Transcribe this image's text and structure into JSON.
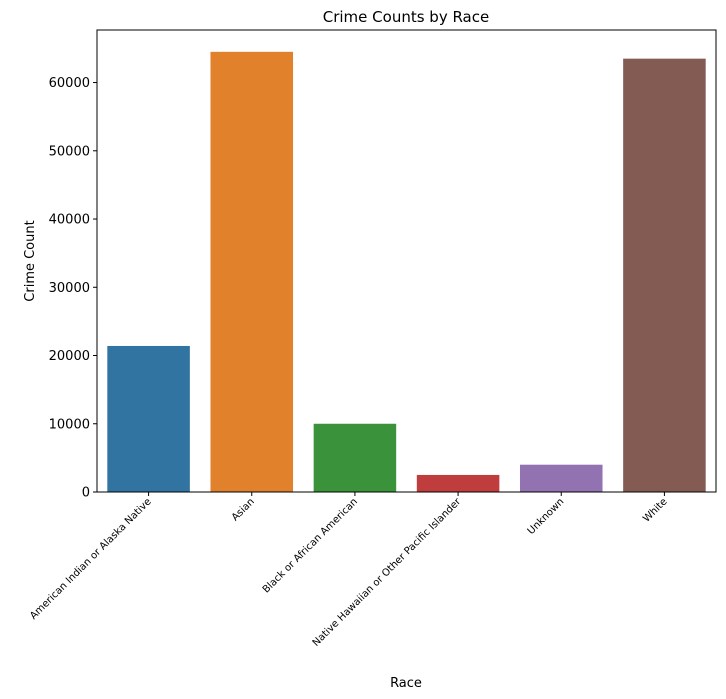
{
  "chart_data": {
    "type": "bar",
    "title": "Crime Counts by Race",
    "xlabel": "Race",
    "ylabel": "Crime Count",
    "categories": [
      "American Indian or Alaska Native",
      "Asian",
      "Black or African American",
      "Native Hawaiian or Other Pacific Islander",
      "Unknown",
      "White"
    ],
    "values": [
      21400,
      64500,
      10000,
      2500,
      4000,
      63500
    ],
    "colors": [
      "#3274a1",
      "#e1812c",
      "#3a923a",
      "#c03d3e",
      "#9372b2",
      "#845b53"
    ],
    "ylim": [
      0,
      67700
    ],
    "yticks": [
      0,
      10000,
      20000,
      30000,
      40000,
      50000,
      60000
    ],
    "grid": false,
    "legend": "none"
  }
}
